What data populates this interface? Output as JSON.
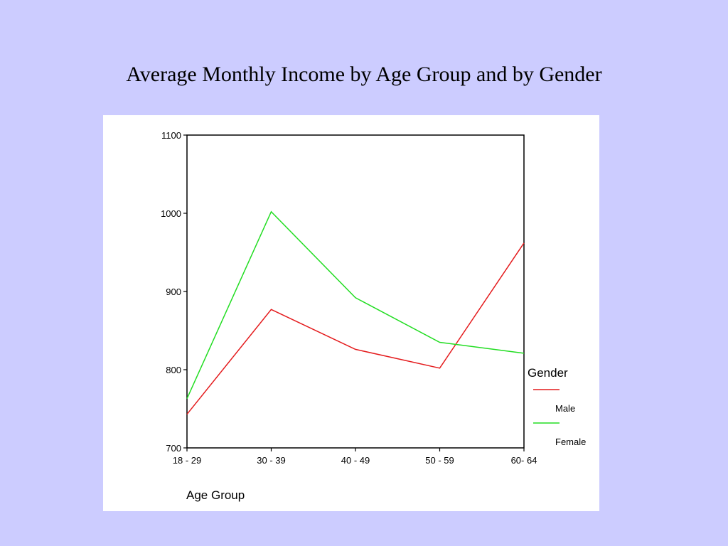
{
  "slide": {
    "title": "Average Monthly Income by Age Group and by Gender"
  },
  "chart_data": {
    "type": "line",
    "xlabel": "Age Group",
    "ylabel": "",
    "categories": [
      "18 - 29",
      "30 - 39",
      "40 - 49",
      "50 - 59",
      "60- 64"
    ],
    "ylim": [
      700,
      1100
    ],
    "yticks": [
      700,
      800,
      900,
      1000,
      1100
    ],
    "yticklabels": [
      "700",
      "800",
      "900",
      "1000",
      "1100"
    ],
    "legend": {
      "title": "Gender",
      "placement": "right"
    },
    "series": [
      {
        "name": "Male",
        "color": "#e41a1c",
        "values": [
          743,
          877,
          826,
          802,
          962
        ]
      },
      {
        "name": "Female",
        "color": "#22dd22",
        "values": [
          763,
          1002,
          892,
          835,
          821
        ]
      }
    ]
  }
}
